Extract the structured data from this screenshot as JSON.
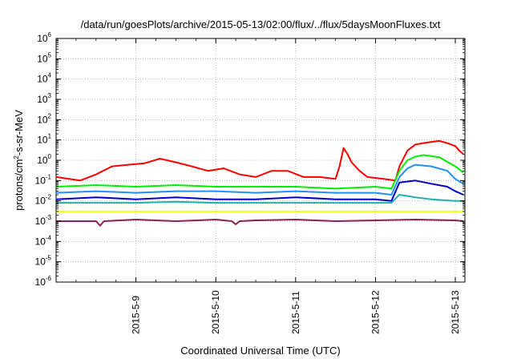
{
  "chart_data": {
    "type": "line",
    "title": "/data/run/goesPlots/archive/2015-05-13/02:00/flux/../flux/5daysMoonFluxes.txt",
    "xlabel": "Coordinated Universal Time (UTC)",
    "ylabel": {
      "pre": "protons/cm",
      "sup": "2",
      "post": "-s-sr-MeV"
    },
    "y_scale": "log",
    "ylim_exponents": [
      -6,
      6
    ],
    "y_ticks": [
      {
        "base": "10",
        "exp": "6"
      },
      {
        "base": "10",
        "exp": "5"
      },
      {
        "base": "10",
        "exp": "4"
      },
      {
        "base": "10",
        "exp": "3"
      },
      {
        "base": "10",
        "exp": "2"
      },
      {
        "base": "10",
        "exp": "1"
      },
      {
        "base": "10",
        "exp": "0"
      },
      {
        "base": "10",
        "exp": "-1"
      },
      {
        "base": "10",
        "exp": "-2"
      },
      {
        "base": "10",
        "exp": "-3"
      },
      {
        "base": "10",
        "exp": "-4"
      },
      {
        "base": "10",
        "exp": "-5"
      },
      {
        "base": "10",
        "exp": "-6"
      }
    ],
    "x_range_days": [
      "2015-05-08",
      "2015-05-13"
    ],
    "x_ticks": [
      "2015-5-9",
      "2015-5-10",
      "2015-5-11",
      "2015-5-12",
      "2015-5-13"
    ],
    "grid": true,
    "series": [
      {
        "color": "#ff0000",
        "x": [
          8.0,
          8.3,
          8.5,
          8.7,
          8.9,
          9.1,
          9.3,
          9.5,
          9.7,
          9.9,
          10.1,
          10.3,
          10.5,
          10.7,
          10.9,
          11.1,
          11.3,
          11.5,
          11.55,
          11.6,
          11.65,
          11.7,
          11.8,
          11.9,
          12.1,
          12.25,
          12.3,
          12.4,
          12.5,
          12.6,
          12.7,
          12.8,
          12.9,
          13.0,
          13.05,
          13.1
        ],
        "y": [
          0.15,
          0.1,
          0.2,
          0.5,
          0.6,
          0.7,
          1.2,
          0.8,
          0.5,
          0.3,
          0.4,
          0.2,
          0.15,
          0.3,
          0.3,
          0.15,
          0.15,
          0.12,
          0.5,
          4.0,
          2.0,
          0.8,
          0.3,
          0.15,
          0.12,
          0.1,
          0.5,
          3.0,
          6.0,
          7.0,
          8.0,
          9.0,
          7.0,
          5.0,
          3.0,
          2.0
        ]
      },
      {
        "color": "#00ee00",
        "x": [
          8.0,
          8.5,
          9.0,
          9.5,
          10.0,
          10.5,
          11.0,
          11.5,
          12.0,
          12.2,
          12.3,
          12.4,
          12.5,
          12.6,
          12.8,
          13.0,
          13.1
        ],
        "y": [
          0.05,
          0.06,
          0.05,
          0.06,
          0.05,
          0.05,
          0.05,
          0.04,
          0.05,
          0.04,
          0.3,
          1.0,
          1.5,
          1.8,
          1.4,
          0.5,
          0.25
        ]
      },
      {
        "color": "#1e90ff",
        "x": [
          8.0,
          8.5,
          9.0,
          9.5,
          10.0,
          10.5,
          11.0,
          11.5,
          12.0,
          12.2,
          12.3,
          12.4,
          12.5,
          12.7,
          12.9,
          13.0,
          13.1
        ],
        "y": [
          0.025,
          0.03,
          0.025,
          0.03,
          0.03,
          0.025,
          0.03,
          0.025,
          0.025,
          0.02,
          0.15,
          0.4,
          0.6,
          0.5,
          0.3,
          0.12,
          0.07
        ]
      },
      {
        "color": "#0000cd",
        "x": [
          8.0,
          8.5,
          9.0,
          9.5,
          10.0,
          10.5,
          11.0,
          11.5,
          12.0,
          12.2,
          12.3,
          12.5,
          12.7,
          12.9,
          13.0,
          13.1
        ],
        "y": [
          0.012,
          0.015,
          0.012,
          0.015,
          0.012,
          0.012,
          0.015,
          0.012,
          0.012,
          0.01,
          0.08,
          0.1,
          0.07,
          0.05,
          0.03,
          0.02
        ]
      },
      {
        "color": "#20b2aa",
        "x": [
          8.0,
          8.5,
          9.0,
          9.5,
          10.0,
          10.5,
          11.0,
          11.5,
          12.0,
          12.2,
          12.3,
          12.5,
          12.7,
          13.0,
          13.1
        ],
        "y": [
          0.008,
          0.008,
          0.008,
          0.009,
          0.008,
          0.008,
          0.008,
          0.008,
          0.008,
          0.008,
          0.02,
          0.015,
          0.012,
          0.01,
          0.01
        ]
      },
      {
        "color": "#ffff00",
        "x": [
          8.0,
          8.5,
          9.0,
          9.5,
          10.0,
          10.5,
          11.0,
          11.5,
          12.0,
          12.5,
          13.0,
          13.1
        ],
        "y": [
          0.003,
          0.003,
          0.003,
          0.003,
          0.003,
          0.003,
          0.003,
          0.003,
          0.003,
          0.003,
          0.003,
          0.003
        ]
      },
      {
        "color": "#8b2252",
        "x": [
          8.0,
          8.5,
          8.55,
          8.6,
          9.0,
          9.5,
          10.0,
          10.2,
          10.25,
          10.3,
          10.5,
          11.0,
          11.5,
          12.0,
          12.5,
          13.0,
          13.1
        ],
        "y": [
          0.001,
          0.001,
          0.0006,
          0.001,
          0.0012,
          0.001,
          0.0012,
          0.001,
          0.0007,
          0.001,
          0.0011,
          0.0012,
          0.001,
          0.0011,
          0.0012,
          0.0011,
          0.001
        ]
      }
    ]
  }
}
